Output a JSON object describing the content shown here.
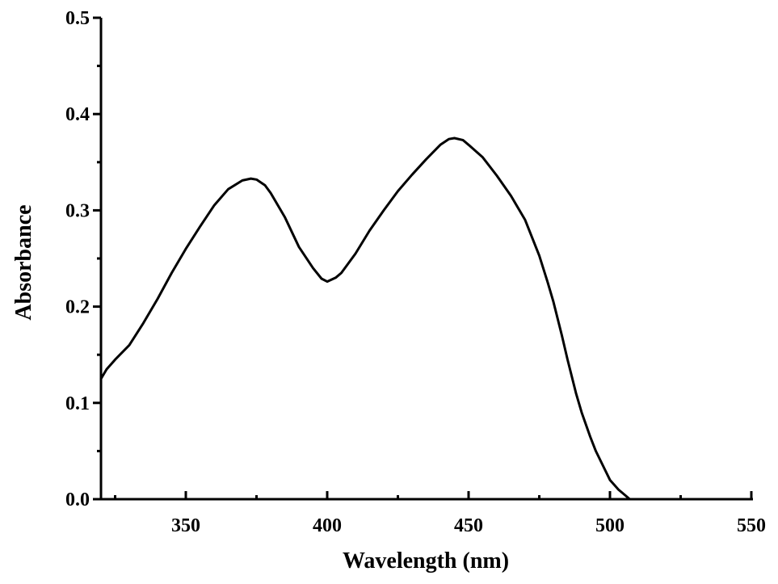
{
  "chart_data": {
    "type": "line",
    "title": "",
    "xlabel": "Wavelength (nm)",
    "ylabel": "Absorbance",
    "xlim": [
      320,
      550
    ],
    "ylim": [
      0.0,
      0.5
    ],
    "x_major_ticks": [
      350,
      400,
      450,
      500,
      550
    ],
    "x_tick_labels": [
      "350",
      "400",
      "450",
      "500",
      "550"
    ],
    "y_major_ticks": [
      0.0,
      0.1,
      0.2,
      0.3,
      0.4,
      0.5
    ],
    "y_tick_labels": [
      "0.0",
      "0.1",
      "0.2",
      "0.3",
      "0.4",
      "0.5"
    ],
    "grid": false,
    "line_color": "#000000",
    "series": [
      {
        "x": [
          320,
          322,
          325,
          330,
          335,
          340,
          345,
          350,
          355,
          360,
          365,
          370,
          373,
          375,
          378,
          380,
          385,
          390,
          395,
          398,
          400,
          403,
          405,
          410,
          415,
          420,
          425,
          430,
          435,
          440,
          443,
          445,
          448,
          450,
          455,
          460,
          465,
          470,
          475,
          478,
          480,
          483,
          485,
          488,
          490,
          493,
          495,
          498,
          500,
          503,
          505,
          507,
          509
        ],
        "y": [
          0.125,
          0.135,
          0.145,
          0.16,
          0.183,
          0.208,
          0.235,
          0.26,
          0.283,
          0.305,
          0.322,
          0.331,
          0.333,
          0.332,
          0.326,
          0.318,
          0.293,
          0.262,
          0.24,
          0.229,
          0.226,
          0.23,
          0.235,
          0.255,
          0.279,
          0.3,
          0.32,
          0.337,
          0.353,
          0.368,
          0.374,
          0.375,
          0.373,
          0.368,
          0.355,
          0.336,
          0.315,
          0.29,
          0.253,
          0.225,
          0.205,
          0.17,
          0.145,
          0.11,
          0.09,
          0.065,
          0.05,
          0.032,
          0.02,
          0.01,
          0.005,
          0.0,
          0.0
        ]
      }
    ]
  }
}
